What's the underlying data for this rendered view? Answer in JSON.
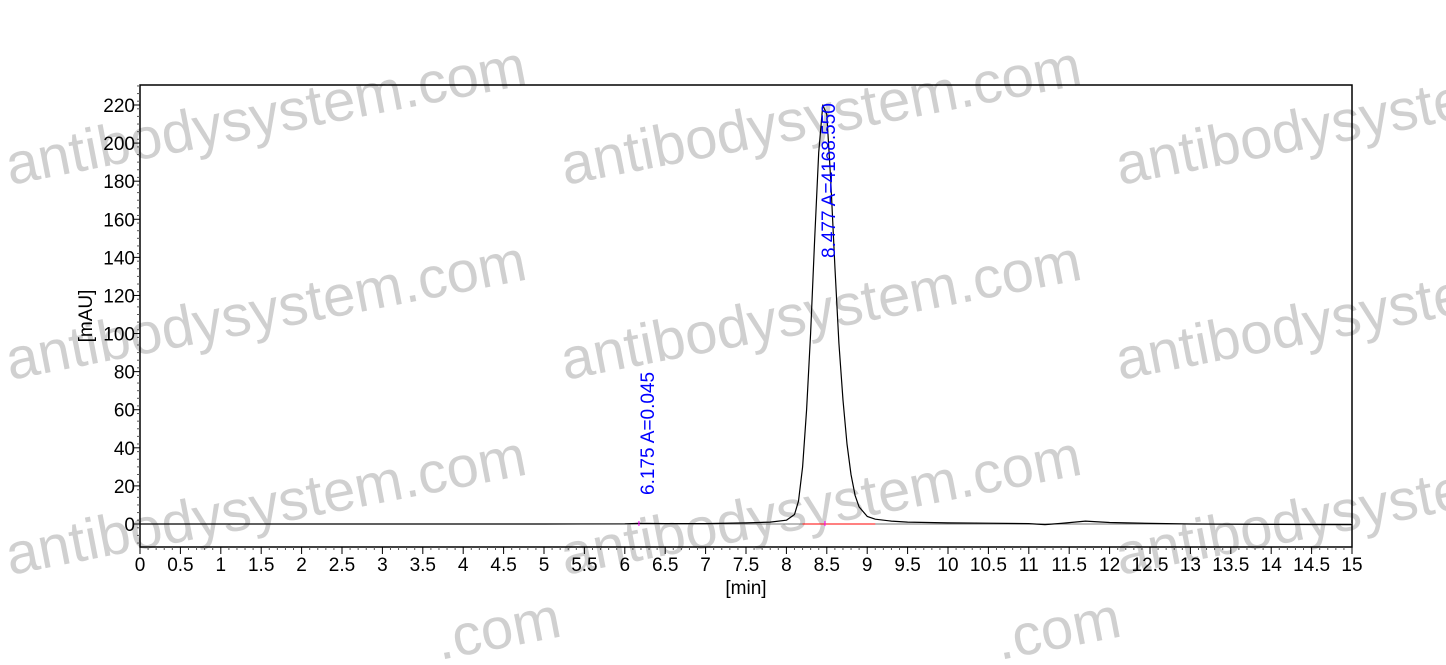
{
  "watermark": "antibodysystem.com",
  "chart_data": {
    "type": "line",
    "title": "",
    "xlabel": "[min]",
    "ylabel": "[mAU]",
    "xlim": [
      0,
      15
    ],
    "ylim": [
      -12,
      230
    ],
    "xticks": [
      "0",
      "0.5",
      "1",
      "1.5",
      "2",
      "2.5",
      "3",
      "3.5",
      "4",
      "4.5",
      "5",
      "5.5",
      "6",
      "6.5",
      "7",
      "7.5",
      "8",
      "8.5",
      "9",
      "9.5",
      "10",
      "10.5",
      "11",
      "11.5",
      "12",
      "12.5",
      "13",
      "13.5",
      "14",
      "14.5",
      "15"
    ],
    "yticks": [
      "0",
      "20",
      "40",
      "60",
      "80",
      "100",
      "120",
      "140",
      "160",
      "180",
      "200",
      "220"
    ],
    "grid": false,
    "line_color": "#000000",
    "annotation_color": "#0000ff",
    "baseline_color": "#ff0000",
    "series": [
      {
        "x": [
          0,
          1,
          2,
          3,
          4,
          5,
          6.0,
          6.175,
          6.5,
          7.0,
          7.5,
          7.8,
          8.0,
          8.1,
          8.15,
          8.2,
          8.25,
          8.3,
          8.35,
          8.4,
          8.45,
          8.5,
          8.55,
          8.6,
          8.65,
          8.7,
          8.75,
          8.8,
          8.85,
          8.9,
          9.0,
          9.1,
          9.3,
          9.5,
          10,
          10.5,
          11,
          11.2,
          11.4,
          11.7,
          12,
          12.5,
          13,
          14,
          15
        ],
        "y": [
          0,
          0,
          0,
          0,
          0,
          0,
          0.1,
          0.3,
          0.2,
          0.2,
          0.6,
          1.0,
          2,
          5,
          12,
          30,
          60,
          100,
          150,
          195,
          220,
          215,
          180,
          135,
          95,
          65,
          42,
          26,
          15,
          9,
          4,
          2.5,
          1.5,
          1,
          0.6,
          0.4,
          0.2,
          -0.3,
          0.3,
          1.5,
          0.8,
          0.3,
          0,
          -0.2,
          -0.3
        ]
      }
    ],
    "peaks": [
      {
        "label": "6.175 A=0.045",
        "rt": 6.175
      },
      {
        "label": "8.477 A=4168.550",
        "rt": 8.477
      }
    ],
    "integration_baselines": [
      [
        8.2,
        9.1
      ]
    ]
  }
}
